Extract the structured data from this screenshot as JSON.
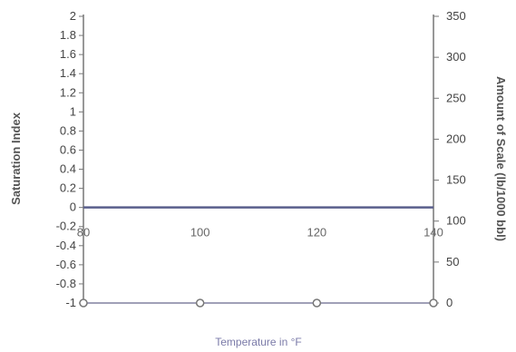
{
  "chart_data": {
    "type": "line",
    "title": "",
    "xlabel": "Temperature in °F",
    "ylabel": "Saturation Index",
    "y2label": "Amount of Scale (lb/1000 bbl)",
    "x_ticks": [
      80,
      100,
      120,
      140
    ],
    "y_ticks": [
      "2",
      "1.8",
      "1.6",
      "1.4",
      "1.2",
      "1",
      "0.8",
      "0.6",
      "0.4",
      "0.2",
      "0",
      "-0.2",
      "-0.4",
      "-0.6",
      "-0.8",
      "-1"
    ],
    "y2_ticks": [
      "350",
      "300",
      "250",
      "200",
      "150",
      "100",
      "50",
      "0"
    ],
    "xlim": [
      80,
      140
    ],
    "ylim": [
      -1,
      2
    ],
    "y2lim": [
      0,
      350
    ],
    "grid": false,
    "series": [
      {
        "axis": "left",
        "x": [
          80,
          140
        ],
        "values": [
          0,
          0
        ],
        "color": "#5a5f8c"
      },
      {
        "axis": "right",
        "x": [
          80,
          100,
          120,
          140
        ],
        "values": [
          0,
          0,
          0,
          0
        ],
        "color": "#8a8aa8"
      }
    ]
  }
}
